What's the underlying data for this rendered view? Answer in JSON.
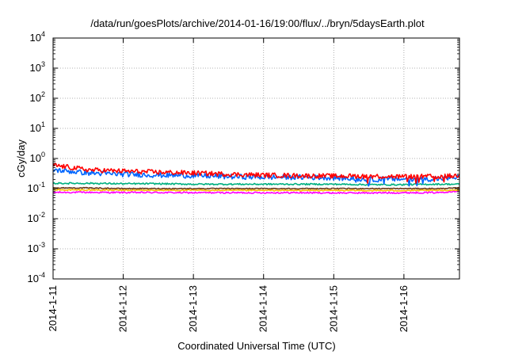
{
  "chart_data": {
    "type": "line",
    "title": "/data/run/goesPlots/archive/2014-01-16/19:00/flux/../bryn/5daysEarth.plot",
    "xlabel": "Coordinated Universal Time (UTC)",
    "ylabel": "cGy/day",
    "yscale": "log",
    "ylim": [
      0.0001,
      10000
    ],
    "y_ticks": [
      {
        "base": "10",
        "exp": "4"
      },
      {
        "base": "10",
        "exp": "3"
      },
      {
        "base": "10",
        "exp": "2"
      },
      {
        "base": "10",
        "exp": "1"
      },
      {
        "base": "10",
        "exp": "0"
      },
      {
        "base": "10",
        "exp": "-1"
      },
      {
        "base": "10",
        "exp": "-2"
      },
      {
        "base": "10",
        "exp": "-3"
      },
      {
        "base": "10",
        "exp": "-4"
      }
    ],
    "xlim": [
      "2014-01-11 00:00",
      "2014-01-16 19:00"
    ],
    "x_ticks": [
      "2014-1-11",
      "2014-1-12",
      "2014-1-13",
      "2014-1-14",
      "2014-1-15",
      "2014-1-16"
    ],
    "grid": true,
    "legend": "none",
    "series": [
      {
        "color": "#ff0000",
        "x": [
          "2014-01-11 00:00",
          "2014-01-11 12:00",
          "2014-01-12 00:00",
          "2014-01-12 12:00",
          "2014-01-13 00:00",
          "2014-01-13 12:00",
          "2014-01-14 00:00",
          "2014-01-14 12:00",
          "2014-01-15 00:00",
          "2014-01-15 12:00",
          "2014-01-16 00:00",
          "2014-01-16 12:00",
          "2014-01-16 19:00"
        ],
        "values": [
          0.6,
          0.42,
          0.38,
          0.35,
          0.33,
          0.3,
          0.28,
          0.27,
          0.26,
          0.26,
          0.25,
          0.25,
          0.27
        ]
      },
      {
        "color": "#0066ff",
        "x": [
          "2014-01-11 00:00",
          "2014-01-11 12:00",
          "2014-01-12 00:00",
          "2014-01-12 12:00",
          "2014-01-13 00:00",
          "2014-01-13 12:00",
          "2014-01-14 00:00",
          "2014-01-14 12:00",
          "2014-01-15 00:00",
          "2014-01-15 12:00",
          "2014-01-16 00:00",
          "2014-01-16 12:00",
          "2014-01-16 19:00"
        ],
        "values": [
          0.42,
          0.33,
          0.3,
          0.28,
          0.27,
          0.25,
          0.24,
          0.24,
          0.23,
          0.2,
          0.21,
          0.21,
          0.24
        ]
      },
      {
        "color": "#00b080",
        "x": [
          "2014-01-11 00:00",
          "2014-01-11 12:00",
          "2014-01-12 00:00",
          "2014-01-12 12:00",
          "2014-01-13 00:00",
          "2014-01-13 12:00",
          "2014-01-14 00:00",
          "2014-01-14 12:00",
          "2014-01-15 00:00",
          "2014-01-15 12:00",
          "2014-01-16 00:00",
          "2014-01-16 12:00",
          "2014-01-16 19:00"
        ],
        "values": [
          0.15,
          0.15,
          0.145,
          0.145,
          0.14,
          0.14,
          0.14,
          0.14,
          0.14,
          0.135,
          0.135,
          0.14,
          0.14
        ]
      },
      {
        "color": "#6b3a1a",
        "x": [
          "2014-01-11 00:00",
          "2014-01-11 12:00",
          "2014-01-12 00:00",
          "2014-01-12 12:00",
          "2014-01-13 00:00",
          "2014-01-13 12:00",
          "2014-01-14 00:00",
          "2014-01-14 12:00",
          "2014-01-15 00:00",
          "2014-01-15 12:00",
          "2014-01-16 00:00",
          "2014-01-16 12:00",
          "2014-01-16 19:00"
        ],
        "values": [
          0.105,
          0.105,
          0.1,
          0.1,
          0.1,
          0.1,
          0.1,
          0.1,
          0.1,
          0.1,
          0.1,
          0.1,
          0.105
        ]
      },
      {
        "color": "#ffc000",
        "x": [
          "2014-01-11 00:00",
          "2014-01-11 12:00",
          "2014-01-12 00:00",
          "2014-01-12 12:00",
          "2014-01-13 00:00",
          "2014-01-13 12:00",
          "2014-01-14 00:00",
          "2014-01-14 12:00",
          "2014-01-15 00:00",
          "2014-01-15 12:00",
          "2014-01-16 00:00",
          "2014-01-16 12:00",
          "2014-01-16 19:00"
        ],
        "values": [
          0.09,
          0.09,
          0.088,
          0.088,
          0.088,
          0.087,
          0.087,
          0.087,
          0.087,
          0.086,
          0.086,
          0.087,
          0.09
        ]
      },
      {
        "color": "#ff00ff",
        "x": [
          "2014-01-11 00:00",
          "2014-01-11 12:00",
          "2014-01-12 00:00",
          "2014-01-12 12:00",
          "2014-01-13 00:00",
          "2014-01-13 12:00",
          "2014-01-14 00:00",
          "2014-01-14 12:00",
          "2014-01-15 00:00",
          "2014-01-15 12:00",
          "2014-01-16 00:00",
          "2014-01-16 12:00",
          "2014-01-16 19:00"
        ],
        "values": [
          0.075,
          0.075,
          0.074,
          0.074,
          0.073,
          0.073,
          0.073,
          0.073,
          0.072,
          0.072,
          0.073,
          0.074,
          0.085
        ]
      }
    ]
  }
}
